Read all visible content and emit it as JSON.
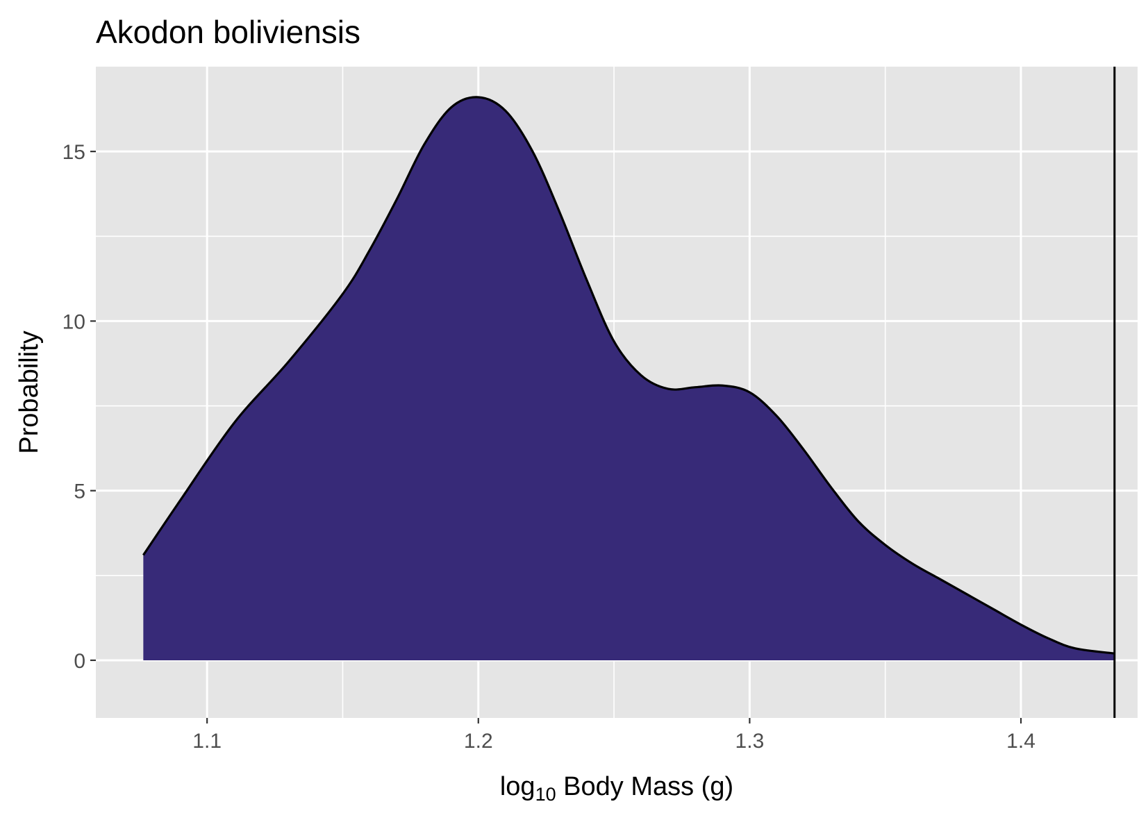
{
  "chart_data": {
    "type": "area",
    "title": "Akodon boliviensis",
    "xlabel": {
      "base": "log",
      "subscript": "10",
      "rest": " Body Mass (g)"
    },
    "ylabel": "Probability",
    "xlim": [
      1.059,
      1.443
    ],
    "ylim": [
      -1.7,
      17.5
    ],
    "x_ticks": [
      1.1,
      1.2,
      1.3,
      1.4
    ],
    "x_tick_labels": [
      "1.1",
      "1.2",
      "1.3",
      "1.4"
    ],
    "y_ticks": [
      0,
      5,
      10,
      15
    ],
    "y_tick_labels": [
      "0",
      "5",
      "10",
      "15"
    ],
    "grid": true,
    "colors": {
      "panel_background": "#e5e5e5",
      "grid_line": "#ffffff",
      "fill": "#372a78",
      "outline": "#000000",
      "tick_label": "#4d4d4d",
      "tick_mark": "#333333"
    },
    "series": [
      {
        "x": [
          1.0765,
          1.09,
          1.11,
          1.13,
          1.15,
          1.16,
          1.17,
          1.18,
          1.19,
          1.2,
          1.21,
          1.22,
          1.23,
          1.24,
          1.25,
          1.26,
          1.27,
          1.28,
          1.29,
          1.3,
          1.31,
          1.32,
          1.33,
          1.34,
          1.35,
          1.36,
          1.37,
          1.38,
          1.39,
          1.4,
          1.41,
          1.42,
          1.4345
        ],
        "y": [
          3.1,
          4.7,
          7.0,
          8.8,
          10.8,
          12.1,
          13.6,
          15.2,
          16.3,
          16.6,
          16.2,
          15.0,
          13.2,
          11.2,
          9.4,
          8.4,
          8.0,
          8.05,
          8.1,
          7.9,
          7.2,
          6.2,
          5.1,
          4.1,
          3.4,
          2.85,
          2.4,
          1.95,
          1.5,
          1.05,
          0.65,
          0.35,
          0.2
        ]
      }
    ],
    "vline_x": 1.4345
  }
}
